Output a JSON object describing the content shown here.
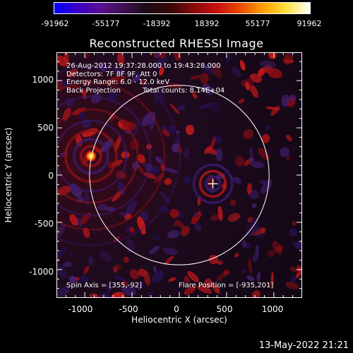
{
  "colorbar": {
    "ticks": [
      "-91962",
      "-55177",
      "-18392",
      "18392",
      "55177",
      "91962"
    ],
    "stops": [
      "#0000ff",
      "#3a00c8",
      "#5a1090",
      "#401050",
      "#1a0a14",
      "#3a0808",
      "#8a0a0a",
      "#c81010",
      "#e84a00",
      "#ffa000",
      "#ffe040",
      "#ffffff"
    ]
  },
  "title": "Reconstructed RHESSI Image",
  "header_lines": {
    "time": "26-Aug-2012 19:37:28.000 to 19:43:28.000",
    "detectors": "Detectors: 7F 8F 9F, Att 0",
    "energy": "Energy Range: 6.0 - 12.0 keV",
    "method": "Back Projection",
    "counts": "Total counts: 8.14E+04"
  },
  "footer_lines": {
    "spin_axis": "Spin Axis = [355,-92]",
    "flare_position": "Flare Position = [-935,201]"
  },
  "axes": {
    "xlabel": "Heliocentric X (arcsec)",
    "ylabel": "Heliocentric Y (arcsec)",
    "xticks": [
      "-1000",
      "-500",
      "0",
      "500",
      "1000"
    ],
    "yticks": [
      "1000",
      "500",
      "0",
      "-500",
      "-1000"
    ],
    "xlim": [
      -1300,
      1300
    ],
    "ylim": [
      -1300,
      1300
    ]
  },
  "features": {
    "flare_source": {
      "x": -935,
      "y": 201
    },
    "spin_axis_marker": {
      "x": 355,
      "y": -92
    },
    "solar_limb_radius_arcsec": 950
  },
  "timestamp": "13-May-2022 21:21"
}
